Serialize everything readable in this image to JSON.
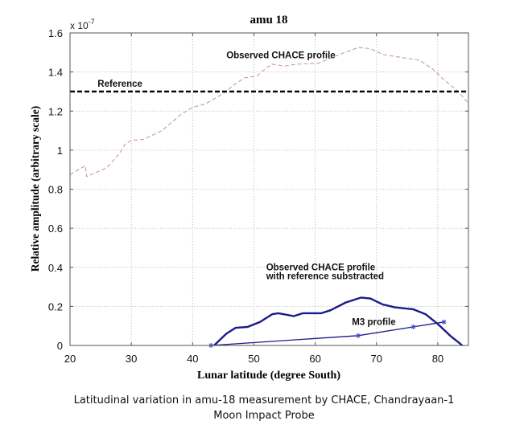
{
  "chart_data": {
    "type": "line",
    "title": "amu 18",
    "xlabel": "Lunar latitude (degree South)",
    "ylabel": "Relative amplitude (arbitrary scale)",
    "y_multiplier": "x 10",
    "y_multiplier_exp": "-7",
    "xlim": [
      20,
      85
    ],
    "ylim": [
      0,
      1.6
    ],
    "xticks": [
      20,
      30,
      40,
      50,
      60,
      70,
      80
    ],
    "xtick_labels": [
      "20",
      "30",
      "40",
      "50",
      "60",
      "70",
      "80"
    ],
    "yticks": [
      0,
      0.2,
      0.4,
      0.6,
      0.8,
      1,
      1.2,
      1.4,
      1.6
    ],
    "ytick_labels": [
      "0",
      "0.2",
      "0.4",
      "0.6",
      "0.8",
      "1",
      "1.2",
      "1.4",
      "1.6"
    ],
    "grid": true,
    "series": [
      {
        "name": "Observed CHACE profile",
        "style": "dashed",
        "color": "#c89a9a",
        "x": [
          20,
          22.5,
          22.7,
          26,
          28,
          29,
          30,
          32,
          35,
          38,
          40,
          42,
          45,
          47,
          48.5,
          50.5,
          52,
          53,
          55,
          57,
          60.5,
          64,
          67,
          69,
          71,
          73,
          77,
          79,
          81,
          83,
          85
        ],
        "y": [
          0.875,
          0.92,
          0.865,
          0.91,
          0.98,
          1.03,
          1.05,
          1.055,
          1.1,
          1.18,
          1.22,
          1.235,
          1.29,
          1.34,
          1.37,
          1.38,
          1.42,
          1.44,
          1.43,
          1.44,
          1.445,
          1.49,
          1.525,
          1.52,
          1.49,
          1.48,
          1.46,
          1.42,
          1.36,
          1.31,
          1.24
        ]
      },
      {
        "name": "Reference",
        "style": "dashed-thick",
        "color": "#000000",
        "x": [
          20,
          85
        ],
        "y": [
          1.3,
          1.3
        ]
      },
      {
        "name": "Observed CHACE profile with reference substracted",
        "style": "solid-thick",
        "color": "#1a1a8c",
        "x": [
          43.5,
          45.5,
          47,
          49,
          51,
          53,
          54,
          56.5,
          58,
          61,
          62.5,
          65,
          67.5,
          69,
          71,
          73,
          76,
          78,
          80,
          82,
          84
        ],
        "y": [
          0,
          0.06,
          0.09,
          0.095,
          0.12,
          0.16,
          0.165,
          0.15,
          0.165,
          0.165,
          0.18,
          0.22,
          0.245,
          0.24,
          0.21,
          0.195,
          0.185,
          0.16,
          0.11,
          0.05,
          0
        ]
      },
      {
        "name": "M3 profile",
        "style": "solid-markers",
        "color": "#1a1a8c",
        "x": [
          43,
          67,
          76,
          81
        ],
        "y": [
          0,
          0.05,
          0.095,
          0.12
        ]
      }
    ],
    "annotations": [
      {
        "text": "Observed CHACE profile",
        "x": 45.5,
        "y": 1.47
      },
      {
        "text": "Reference",
        "x": 24.5,
        "y": 1.325
      },
      {
        "text": "Observed CHACE profile",
        "x": 52,
        "y": 0.385
      },
      {
        "text": "with reference substracted",
        "x": 52,
        "y": 0.34
      },
      {
        "text": "M3 profile",
        "x": 66,
        "y": 0.105
      }
    ]
  },
  "caption": {
    "line1": "Latitudinal variation in amu-18 measurement by CHACE, Chandrayaan-1",
    "line2": "Moon Impact Probe"
  }
}
